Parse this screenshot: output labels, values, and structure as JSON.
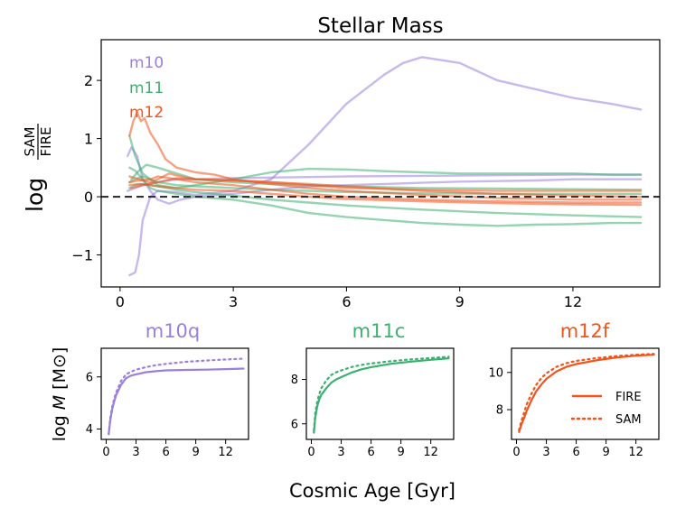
{
  "figure": {
    "xlabel": "Cosmic Age [Gyr]",
    "colors": {
      "m10": "#9b7fdc",
      "m11": "#3cb071",
      "m12": "#f2541b",
      "zero_line": "#333333"
    }
  },
  "chart_data": [
    {
      "type": "line",
      "title": "Stellar Mass",
      "ylabel": "log SAM/FIRE",
      "ylabel_prefix": "log",
      "ylabel_num": "SAM",
      "ylabel_den": "FIRE",
      "xlim": [
        -0.5,
        14.3
      ],
      "ylim": [
        -1.55,
        2.7
      ],
      "xticks": [
        0,
        3,
        6,
        9,
        12
      ],
      "yticks": [
        -1,
        0,
        1,
        2
      ],
      "ytick_labels": [
        "−1",
        "0",
        "1",
        "2"
      ],
      "reference_line": 0,
      "legend": [
        {
          "label": "m10",
          "color": "#9b7fdc"
        },
        {
          "label": "m11",
          "color": "#3cb071"
        },
        {
          "label": "m12",
          "color": "#f2541b"
        }
      ],
      "series": [
        {
          "group": "m10",
          "x": [
            0.25,
            0.4,
            0.5,
            0.6,
            0.8,
            1.0,
            1.5,
            2,
            3,
            4,
            5,
            6,
            7,
            7.5,
            8,
            9,
            10,
            11,
            12,
            13,
            13.8
          ],
          "y": [
            -1.35,
            -1.3,
            -1.0,
            -0.4,
            0.0,
            0.1,
            0.08,
            0.03,
            0.1,
            0.3,
            0.9,
            1.6,
            2.1,
            2.3,
            2.4,
            2.3,
            2.0,
            1.85,
            1.7,
            1.6,
            1.5
          ]
        },
        {
          "group": "m10",
          "x": [
            0.2,
            0.3,
            0.45,
            0.6,
            0.8,
            1.0,
            1.3,
            1.6,
            2,
            3,
            4,
            5,
            6,
            7,
            8,
            9,
            10,
            11,
            12,
            13,
            13.8
          ],
          "y": [
            0.7,
            0.85,
            0.7,
            0.3,
            0.1,
            -0.05,
            -0.12,
            -0.05,
            0.0,
            0.05,
            0.12,
            0.18,
            0.2,
            0.22,
            0.24,
            0.26,
            0.27,
            0.28,
            0.3,
            0.3,
            0.3
          ]
        },
        {
          "group": "m10",
          "x": [
            0.2,
            0.4,
            0.6,
            1.0,
            1.5,
            2,
            3,
            4,
            5,
            6,
            8,
            10,
            12,
            13.8
          ],
          "y": [
            0.1,
            0.15,
            0.2,
            0.25,
            0.3,
            0.3,
            0.32,
            0.33,
            0.34,
            0.35,
            0.36,
            0.37,
            0.38,
            0.38
          ]
        },
        {
          "group": "m11",
          "x": [
            0.25,
            0.4,
            0.6,
            0.8,
            1.0,
            1.5,
            2,
            3,
            4,
            5,
            6,
            7,
            8,
            9,
            10,
            11,
            12,
            13,
            13.8
          ],
          "y": [
            1.05,
            0.7,
            0.4,
            0.3,
            0.2,
            0.15,
            0.2,
            0.3,
            0.42,
            0.48,
            0.47,
            0.44,
            0.42,
            0.4,
            0.4,
            0.4,
            0.4,
            0.38,
            0.38
          ]
        },
        {
          "group": "m11",
          "x": [
            0.25,
            0.4,
            0.6,
            0.8,
            1.0,
            1.5,
            2,
            3,
            4,
            5,
            6,
            7,
            8,
            9,
            10,
            11,
            12,
            13,
            13.8
          ],
          "y": [
            0.5,
            0.45,
            0.3,
            0.15,
            0.1,
            0.05,
            0.0,
            -0.05,
            -0.15,
            -0.28,
            -0.35,
            -0.4,
            -0.45,
            -0.48,
            -0.5,
            -0.48,
            -0.47,
            -0.45,
            -0.45
          ]
        },
        {
          "group": "m11",
          "x": [
            0.25,
            0.4,
            0.6,
            0.8,
            1.0,
            1.5,
            2,
            3,
            4,
            5,
            6,
            8,
            10,
            12,
            13.8
          ],
          "y": [
            0.15,
            0.2,
            0.22,
            0.2,
            0.18,
            0.12,
            0.08,
            0.02,
            -0.05,
            -0.1,
            -0.15,
            -0.22,
            -0.28,
            -0.32,
            -0.35
          ]
        },
        {
          "group": "m11",
          "x": [
            0.25,
            0.4,
            0.6,
            0.8,
            1.0,
            1.5,
            2,
            3,
            4,
            5,
            6,
            8,
            10,
            12,
            13.8
          ],
          "y": [
            0.25,
            0.3,
            0.35,
            0.3,
            0.25,
            0.2,
            0.18,
            0.15,
            0.12,
            0.1,
            0.08,
            0.06,
            0.05,
            0.05,
            0.05
          ]
        },
        {
          "group": "m11",
          "x": [
            0.3,
            0.5,
            0.7,
            1.0,
            1.5,
            2,
            3,
            4,
            5,
            6,
            8,
            10,
            12,
            13.8
          ],
          "y": [
            0.3,
            0.45,
            0.55,
            0.5,
            0.4,
            0.3,
            0.25,
            0.22,
            0.2,
            0.18,
            0.15,
            0.14,
            0.13,
            0.12
          ]
        },
        {
          "group": "m12",
          "x": [
            0.25,
            0.35,
            0.45,
            0.55,
            0.65,
            0.8,
            1.0,
            1.2,
            1.5,
            2,
            2.5,
            3,
            4,
            5,
            6,
            8,
            10,
            12,
            13.8
          ],
          "y": [
            1.05,
            1.3,
            1.45,
            1.3,
            1.35,
            1.1,
            0.9,
            0.65,
            0.5,
            0.42,
            0.38,
            0.3,
            0.22,
            0.15,
            0.1,
            0.03,
            -0.02,
            -0.05,
            -0.05
          ]
        },
        {
          "group": "m12",
          "x": [
            0.25,
            0.5,
            0.8,
            1.0,
            1.3,
            1.6,
            2,
            3,
            4,
            5,
            6,
            8,
            10,
            12,
            13.8
          ],
          "y": [
            0.35,
            0.3,
            0.25,
            0.3,
            0.4,
            0.35,
            0.3,
            0.28,
            0.25,
            0.22,
            0.18,
            0.1,
            0.05,
            0.02,
            0.0
          ]
        },
        {
          "group": "m12",
          "x": [
            0.25,
            0.5,
            0.8,
            1.0,
            1.5,
            2,
            3,
            4,
            5,
            6,
            8,
            10,
            12,
            13.8
          ],
          "y": [
            0.25,
            0.28,
            0.3,
            0.35,
            0.3,
            0.25,
            0.2,
            0.12,
            0.05,
            0.0,
            -0.05,
            -0.08,
            -0.1,
            -0.1
          ]
        },
        {
          "group": "m12",
          "x": [
            0.25,
            0.5,
            0.8,
            1.0,
            1.5,
            2,
            3,
            4,
            5,
            6,
            8,
            10,
            12,
            13.8
          ],
          "y": [
            0.2,
            0.22,
            0.2,
            0.18,
            0.15,
            0.12,
            0.1,
            0.05,
            0.0,
            -0.04,
            -0.08,
            -0.11,
            -0.13,
            -0.14
          ]
        },
        {
          "group": "m12",
          "x": [
            0.3,
            0.6,
            1.0,
            1.5,
            2,
            3,
            4,
            5,
            6,
            8,
            10,
            12,
            13.8
          ],
          "y": [
            0.15,
            0.2,
            0.25,
            0.32,
            0.3,
            0.28,
            0.25,
            0.2,
            0.15,
            0.12,
            0.1,
            0.1,
            0.1
          ]
        }
      ]
    },
    {
      "type": "line",
      "title": "m10q",
      "title_color": "#9b7fdc",
      "ylabel": "log M [M☉]",
      "ylabel_prefix": "log ",
      "ylabel_var": "M",
      "ylabel_unit": " [M⊙]",
      "xlim": [
        -0.5,
        14.3
      ],
      "ylim": [
        3.6,
        7.1
      ],
      "xticks": [
        0,
        3,
        6,
        9,
        12
      ],
      "yticks": [
        4,
        6
      ],
      "series": [
        {
          "name": "FIRE",
          "style": "solid",
          "color": "#9b7fdc",
          "x": [
            0.25,
            0.4,
            0.6,
            0.8,
            1.0,
            1.5,
            2,
            2.5,
            3,
            4,
            5,
            6,
            8,
            10,
            12,
            13.8
          ],
          "y": [
            3.8,
            4.3,
            4.75,
            5.05,
            5.3,
            5.7,
            5.95,
            6.05,
            6.1,
            6.18,
            6.22,
            6.25,
            6.27,
            6.28,
            6.3,
            6.32
          ]
        },
        {
          "name": "SAM",
          "style": "dotted",
          "color": "#9b7fdc",
          "x": [
            0.25,
            0.4,
            0.6,
            0.8,
            1.0,
            1.5,
            2,
            2.5,
            3,
            4,
            5,
            6,
            8,
            10,
            12,
            13.8
          ],
          "y": [
            3.8,
            4.4,
            4.85,
            5.15,
            5.4,
            5.85,
            6.1,
            6.2,
            6.28,
            6.38,
            6.45,
            6.5,
            6.58,
            6.63,
            6.67,
            6.7
          ]
        }
      ]
    },
    {
      "type": "line",
      "title": "m11c",
      "title_color": "#3cb071",
      "xlim": [
        -0.5,
        14.3
      ],
      "ylim": [
        5.3,
        9.4
      ],
      "xticks": [
        0,
        3,
        6,
        9,
        12
      ],
      "yticks": [
        6,
        8
      ],
      "series": [
        {
          "name": "FIRE",
          "style": "solid",
          "color": "#3cb071",
          "x": [
            0.25,
            0.4,
            0.6,
            0.8,
            1.0,
            1.5,
            2,
            2.5,
            3,
            4,
            5,
            6,
            8,
            10,
            12,
            13.8
          ],
          "y": [
            5.6,
            6.3,
            6.8,
            7.1,
            7.3,
            7.6,
            7.85,
            8.0,
            8.1,
            8.3,
            8.45,
            8.55,
            8.7,
            8.8,
            8.88,
            8.95
          ]
        },
        {
          "name": "SAM",
          "style": "dotted",
          "color": "#3cb071",
          "x": [
            0.25,
            0.4,
            0.6,
            0.8,
            1.0,
            1.5,
            2,
            2.5,
            3,
            4,
            5,
            6,
            8,
            10,
            12,
            13.8
          ],
          "y": [
            5.7,
            6.5,
            7.0,
            7.35,
            7.6,
            7.95,
            8.2,
            8.32,
            8.4,
            8.55,
            8.65,
            8.72,
            8.82,
            8.9,
            8.96,
            9.02
          ]
        }
      ]
    },
    {
      "type": "line",
      "title": "m12f",
      "title_color": "#f2541b",
      "xlim": [
        -0.5,
        14.3
      ],
      "ylim": [
        6.4,
        11.3
      ],
      "xticks": [
        0,
        3,
        6,
        9,
        12
      ],
      "yticks": [
        8,
        10
      ],
      "legend": [
        {
          "label": "FIRE",
          "style": "solid",
          "color": "#f2541b"
        },
        {
          "label": "SAM",
          "style": "dotted",
          "color": "#f2541b"
        }
      ],
      "series": [
        {
          "name": "FIRE",
          "style": "solid",
          "color": "#f2541b",
          "x": [
            0.25,
            0.5,
            0.8,
            1.0,
            1.5,
            2,
            2.5,
            3,
            4,
            5,
            6,
            8,
            10,
            12,
            13.8
          ],
          "y": [
            6.8,
            7.2,
            7.6,
            7.9,
            8.5,
            9.0,
            9.35,
            9.65,
            10.05,
            10.3,
            10.45,
            10.65,
            10.8,
            10.9,
            10.95
          ]
        },
        {
          "name": "SAM",
          "style": "dotted",
          "color": "#f2541b",
          "x": [
            0.25,
            0.5,
            0.8,
            1.0,
            1.5,
            2,
            2.5,
            3,
            4,
            5,
            6,
            8,
            10,
            12,
            13.8
          ],
          "y": [
            6.9,
            7.4,
            7.9,
            8.25,
            8.85,
            9.35,
            9.7,
            9.95,
            10.3,
            10.5,
            10.62,
            10.77,
            10.88,
            10.95,
            11.0
          ]
        }
      ]
    }
  ]
}
